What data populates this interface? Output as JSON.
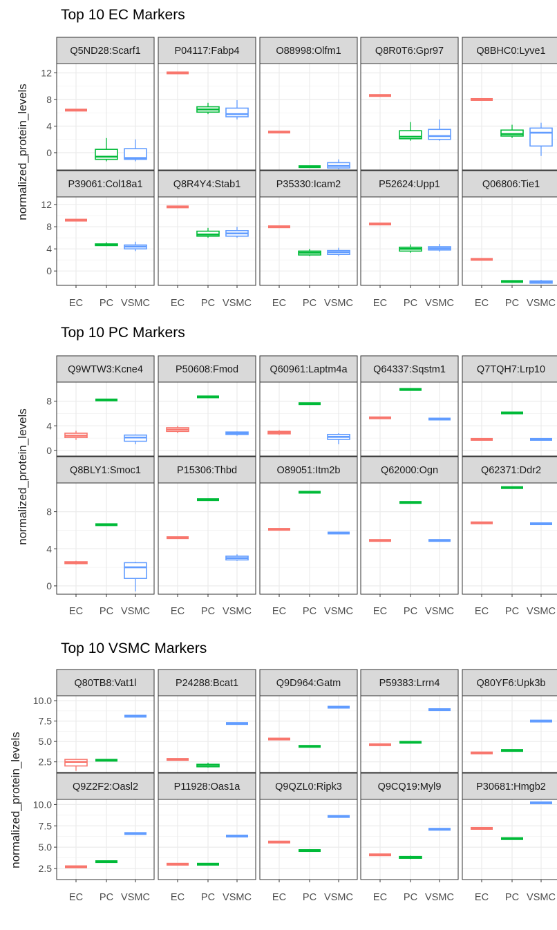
{
  "colors": {
    "EC": "#F8766D",
    "PC": "#00BA38",
    "VSMC": "#619CFF"
  },
  "x_categories": [
    "EC",
    "PC",
    "VSMC"
  ],
  "y_axis_label": "normalized_protein_levels",
  "chart_data": [
    {
      "type": "box",
      "title": "Top 10 EC Markers",
      "ylabel": "normalized_protein_levels",
      "ylim": [
        -2.6,
        13.4
      ],
      "yticks": [
        0,
        4,
        8,
        12
      ],
      "ytick_labels": [
        "0",
        "4",
        "8",
        "12"
      ],
      "panels": [
        {
          "label": "Q5ND28:Scarf1",
          "boxes": {
            "EC": [
              6.4,
              6.4,
              6.4,
              6.4,
              6.4
            ],
            "PC": [
              -1.3,
              -1.0,
              -0.6,
              0.5,
              2.2
            ],
            "VSMC": [
              -1.3,
              -1.0,
              -0.8,
              0.6,
              2.0
            ]
          }
        },
        {
          "label": "P04117:Fabp4",
          "boxes": {
            "EC": [
              12.0,
              12.0,
              12.0,
              12.0,
              12.0
            ],
            "PC": [
              5.8,
              6.1,
              6.5,
              6.9,
              7.5
            ],
            "VSMC": [
              5.0,
              5.4,
              5.8,
              6.7,
              7.9
            ]
          }
        },
        {
          "label": "O88998:Olfm1",
          "boxes": {
            "EC": [
              3.1,
              3.1,
              3.1,
              3.1,
              3.1
            ],
            "PC": [
              -2.1,
              -2.1,
              -2.1,
              -2.1,
              -2.1
            ],
            "VSMC": [
              -2.5,
              -2.3,
              -2.0,
              -1.5,
              -1.0
            ]
          }
        },
        {
          "label": "Q8R0T6:Gpr97",
          "boxes": {
            "EC": [
              8.6,
              8.6,
              8.6,
              8.6,
              8.6
            ],
            "PC": [
              1.8,
              2.1,
              2.4,
              3.3,
              4.6
            ],
            "VSMC": [
              1.8,
              2.0,
              2.5,
              3.5,
              5.0
            ]
          }
        },
        {
          "label": "Q8BHC0:Lyve1",
          "boxes": {
            "EC": [
              8.0,
              8.0,
              8.0,
              8.0,
              8.0
            ],
            "PC": [
              2.2,
              2.5,
              2.8,
              3.4,
              4.2
            ],
            "VSMC": [
              -0.5,
              1.0,
              3.0,
              3.7,
              4.5
            ]
          }
        },
        {
          "label": "P39061:Col18a1",
          "boxes": {
            "EC": [
              9.2,
              9.2,
              9.2,
              9.2,
              9.2
            ],
            "PC": [
              4.5,
              4.6,
              4.8,
              4.9,
              5.2
            ],
            "VSMC": [
              3.6,
              4.0,
              4.4,
              4.7,
              5.3
            ]
          }
        },
        {
          "label": "Q8R4Y4:Stab1",
          "boxes": {
            "EC": [
              11.6,
              11.6,
              11.6,
              11.6,
              11.6
            ],
            "PC": [
              6.0,
              6.3,
              6.6,
              7.2,
              7.8
            ],
            "VSMC": [
              6.0,
              6.3,
              6.8,
              7.3,
              8.0
            ]
          }
        },
        {
          "label": "P35330:Icam2",
          "boxes": {
            "EC": [
              8.0,
              8.0,
              8.0,
              8.0,
              8.0
            ],
            "PC": [
              2.7,
              2.9,
              3.3,
              3.6,
              4.0
            ],
            "VSMC": [
              2.7,
              3.0,
              3.4,
              3.7,
              4.2
            ]
          }
        },
        {
          "label": "P52624:Upp1",
          "boxes": {
            "EC": [
              8.5,
              8.5,
              8.5,
              8.5,
              8.5
            ],
            "PC": [
              3.3,
              3.6,
              4.0,
              4.3,
              4.8
            ],
            "VSMC": [
              3.5,
              3.8,
              4.1,
              4.4,
              4.9
            ]
          }
        },
        {
          "label": "Q06806:Tie1",
          "boxes": {
            "EC": [
              2.1,
              2.1,
              2.1,
              2.1,
              2.1
            ],
            "PC": [
              -1.9,
              -1.9,
              -1.9,
              -1.9,
              -1.9
            ],
            "VSMC": [
              -2.3,
              -2.2,
              -2.0,
              -1.8,
              -1.6
            ]
          }
        }
      ]
    },
    {
      "type": "box",
      "title": "Top 10 PC Markers",
      "ylabel": "normalized_protein_levels",
      "ylim": [
        -0.9,
        11.1
      ],
      "yticks": [
        0,
        4,
        8
      ],
      "ytick_labels": [
        "0",
        "4",
        "8"
      ],
      "panels": [
        {
          "label": "Q9WTW3:Kcne4",
          "boxes": {
            "EC": [
              1.7,
              2.1,
              2.4,
              2.8,
              3.2
            ],
            "PC": [
              8.2,
              8.2,
              8.2,
              8.2,
              8.2
            ],
            "VSMC": [
              1.0,
              1.5,
              2.1,
              2.5,
              2.6
            ]
          }
        },
        {
          "label": "P50608:Fmod",
          "boxes": {
            "EC": [
              2.8,
              3.1,
              3.4,
              3.7,
              4.0
            ],
            "PC": [
              8.7,
              8.7,
              8.7,
              8.7,
              8.7
            ],
            "VSMC": [
              2.4,
              2.6,
              2.8,
              3.0,
              3.1
            ]
          }
        },
        {
          "label": "Q60961:Laptm4a",
          "boxes": {
            "EC": [
              2.5,
              2.7,
              2.9,
              3.1,
              3.3
            ],
            "PC": [
              7.6,
              7.6,
              7.6,
              7.6,
              7.6
            ],
            "VSMC": [
              1.0,
              1.8,
              2.2,
              2.6,
              2.8
            ]
          }
        },
        {
          "label": "Q64337:Sqstm1",
          "boxes": {
            "EC": [
              5.3,
              5.3,
              5.3,
              5.3,
              5.3
            ],
            "PC": [
              9.9,
              9.9,
              9.9,
              9.9,
              9.9
            ],
            "VSMC": [
              5.1,
              5.1,
              5.1,
              5.1,
              5.1
            ]
          }
        },
        {
          "label": "Q7TQH7:Lrp10",
          "boxes": {
            "EC": [
              1.8,
              1.8,
              1.8,
              1.8,
              1.8
            ],
            "PC": [
              6.1,
              6.1,
              6.1,
              6.1,
              6.1
            ],
            "VSMC": [
              1.8,
              1.8,
              1.8,
              1.8,
              1.8
            ]
          }
        },
        {
          "label": "Q8BLY1:Smoc1",
          "boxes": {
            "EC": [
              2.3,
              2.4,
              2.5,
              2.6,
              2.7
            ],
            "PC": [
              6.6,
              6.6,
              6.6,
              6.6,
              6.6
            ],
            "VSMC": [
              -0.6,
              0.8,
              2.0,
              2.5,
              2.6
            ]
          }
        },
        {
          "label": "P15306:Thbd",
          "boxes": {
            "EC": [
              5.2,
              5.2,
              5.2,
              5.2,
              5.2
            ],
            "PC": [
              9.3,
              9.3,
              9.3,
              9.3,
              9.3
            ],
            "VSMC": [
              2.7,
              2.8,
              3.0,
              3.2,
              3.4
            ]
          }
        },
        {
          "label": "O89051:Itm2b",
          "boxes": {
            "EC": [
              6.1,
              6.1,
              6.1,
              6.1,
              6.1
            ],
            "PC": [
              10.1,
              10.1,
              10.1,
              10.1,
              10.1
            ],
            "VSMC": [
              5.7,
              5.7,
              5.7,
              5.7,
              5.7
            ]
          }
        },
        {
          "label": "Q62000:Ogn",
          "boxes": {
            "EC": [
              4.9,
              4.9,
              4.9,
              4.9,
              4.9
            ],
            "PC": [
              9.0,
              9.0,
              9.0,
              9.0,
              9.0
            ],
            "VSMC": [
              4.9,
              4.9,
              4.9,
              4.9,
              4.9
            ]
          }
        },
        {
          "label": "Q62371:Ddr2",
          "boxes": {
            "EC": [
              6.8,
              6.8,
              6.8,
              6.8,
              6.8
            ],
            "PC": [
              10.6,
              10.6,
              10.6,
              10.6,
              10.6
            ],
            "VSMC": [
              6.7,
              6.7,
              6.7,
              6.7,
              6.7
            ]
          }
        }
      ]
    },
    {
      "type": "box",
      "title": "Top 10 VSMC Markers",
      "ylabel": "normalized_protein_levels",
      "ylim": [
        1.2,
        10.6
      ],
      "yticks": [
        2.5,
        5.0,
        7.5,
        10.0
      ],
      "ytick_labels": [
        "2.5",
        "5.0",
        "7.5",
        "10.0"
      ],
      "panels": [
        {
          "label": "Q80TB8:Vat1l",
          "boxes": {
            "EC": [
              1.4,
              2.0,
              2.5,
              2.8,
              2.8
            ],
            "PC": [
              2.7,
              2.7,
              2.7,
              2.7,
              2.7
            ],
            "VSMC": [
              8.1,
              8.1,
              8.1,
              8.1,
              8.1
            ]
          }
        },
        {
          "label": "P24288:Bcat1",
          "boxes": {
            "EC": [
              2.8,
              2.8,
              2.8,
              2.8,
              2.8
            ],
            "PC": [
              1.8,
              1.9,
              2.1,
              2.2,
              2.4
            ],
            "VSMC": [
              7.2,
              7.2,
              7.2,
              7.2,
              7.2
            ]
          }
        },
        {
          "label": "Q9D964:Gatm",
          "boxes": {
            "EC": [
              5.3,
              5.3,
              5.3,
              5.3,
              5.3
            ],
            "PC": [
              4.4,
              4.4,
              4.4,
              4.4,
              4.4
            ],
            "VSMC": [
              9.2,
              9.2,
              9.2,
              9.2,
              9.2
            ]
          }
        },
        {
          "label": "P59383:Lrrn4",
          "boxes": {
            "EC": [
              4.6,
              4.6,
              4.6,
              4.6,
              4.6
            ],
            "PC": [
              4.9,
              4.9,
              4.9,
              4.9,
              4.9
            ],
            "VSMC": [
              8.9,
              8.9,
              8.9,
              8.9,
              8.9
            ]
          }
        },
        {
          "label": "Q80YF6:Upk3b",
          "boxes": {
            "EC": [
              3.6,
              3.6,
              3.6,
              3.6,
              3.6
            ],
            "PC": [
              3.9,
              3.9,
              3.9,
              3.9,
              3.9
            ],
            "VSMC": [
              7.5,
              7.5,
              7.5,
              7.5,
              7.5
            ]
          }
        },
        {
          "label": "Q9Z2F2:Oasl2",
          "boxes": {
            "EC": [
              2.7,
              2.7,
              2.7,
              2.7,
              2.7
            ],
            "PC": [
              3.3,
              3.3,
              3.3,
              3.3,
              3.3
            ],
            "VSMC": [
              6.6,
              6.6,
              6.6,
              6.6,
              6.6
            ]
          }
        },
        {
          "label": "P11928:Oas1a",
          "boxes": {
            "EC": [
              3.0,
              3.0,
              3.0,
              3.0,
              3.0
            ],
            "PC": [
              3.0,
              3.0,
              3.0,
              3.0,
              3.0
            ],
            "VSMC": [
              6.3,
              6.3,
              6.3,
              6.3,
              6.3
            ]
          }
        },
        {
          "label": "Q9QZL0:Ripk3",
          "boxes": {
            "EC": [
              5.6,
              5.6,
              5.6,
              5.6,
              5.6
            ],
            "PC": [
              4.6,
              4.6,
              4.6,
              4.6,
              4.6
            ],
            "VSMC": [
              8.6,
              8.6,
              8.6,
              8.6,
              8.6
            ]
          }
        },
        {
          "label": "Q9CQ19:Myl9",
          "boxes": {
            "EC": [
              4.1,
              4.1,
              4.1,
              4.1,
              4.1
            ],
            "PC": [
              3.6,
              3.7,
              3.8,
              3.9,
              4.0
            ],
            "VSMC": [
              7.1,
              7.1,
              7.1,
              7.1,
              7.1
            ]
          }
        },
        {
          "label": "P30681:Hmgb2",
          "boxes": {
            "EC": [
              7.2,
              7.2,
              7.2,
              7.2,
              7.2
            ],
            "PC": [
              6.0,
              6.0,
              6.0,
              6.0,
              6.0
            ],
            "VSMC": [
              10.2,
              10.2,
              10.2,
              10.2,
              10.2
            ]
          }
        }
      ]
    }
  ]
}
